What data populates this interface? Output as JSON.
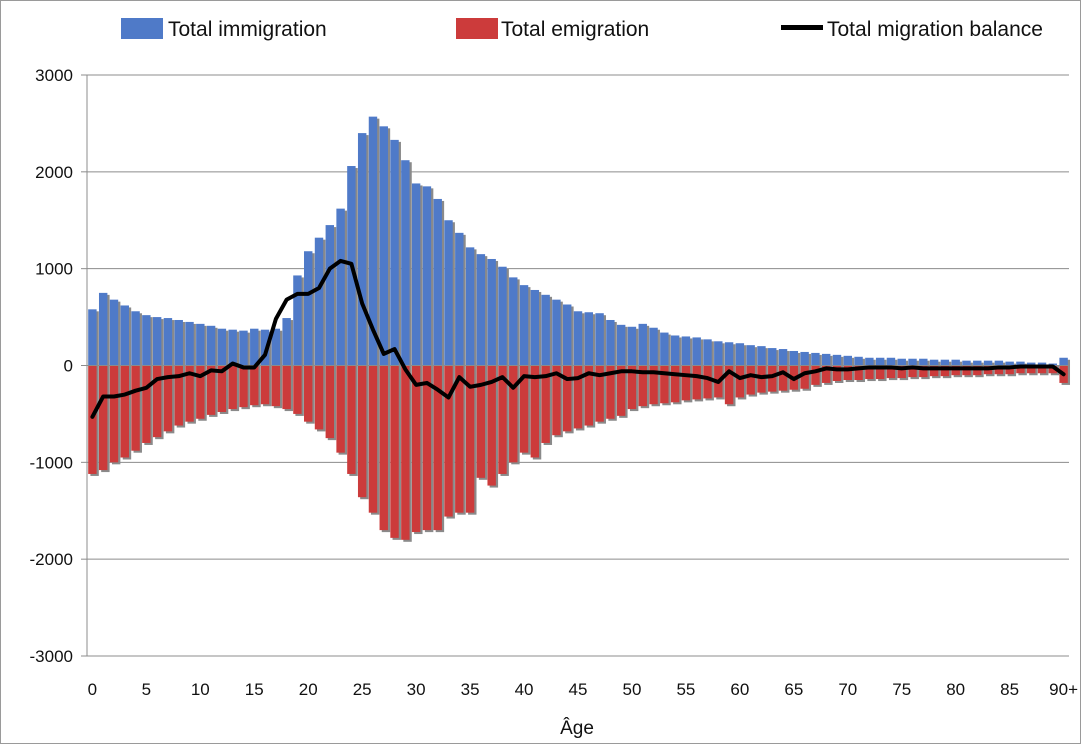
{
  "chart_data": {
    "type": "bar",
    "xlabel": "Âge",
    "ylabel": "",
    "ylim": [
      -3000,
      3000
    ],
    "yticks": [
      3000,
      2000,
      1000,
      0,
      -1000,
      -2000,
      -3000
    ],
    "xtick_labels": [
      "0",
      "5",
      "10",
      "15",
      "20",
      "25",
      "30",
      "35",
      "40",
      "45",
      "50",
      "55",
      "60",
      "65",
      "70",
      "75",
      "80",
      "85",
      "90+"
    ],
    "categories": [
      "0",
      "1",
      "2",
      "3",
      "4",
      "5",
      "6",
      "7",
      "8",
      "9",
      "10",
      "11",
      "12",
      "13",
      "14",
      "15",
      "16",
      "17",
      "18",
      "19",
      "20",
      "21",
      "22",
      "23",
      "24",
      "25",
      "26",
      "27",
      "28",
      "29",
      "30",
      "31",
      "32",
      "33",
      "34",
      "35",
      "36",
      "37",
      "38",
      "39",
      "40",
      "41",
      "42",
      "43",
      "44",
      "45",
      "46",
      "47",
      "48",
      "49",
      "50",
      "51",
      "52",
      "53",
      "54",
      "55",
      "56",
      "57",
      "58",
      "59",
      "60",
      "61",
      "62",
      "63",
      "64",
      "65",
      "66",
      "67",
      "68",
      "69",
      "70",
      "71",
      "72",
      "73",
      "74",
      "75",
      "76",
      "77",
      "78",
      "79",
      "80",
      "81",
      "82",
      "83",
      "84",
      "85",
      "86",
      "87",
      "88",
      "89",
      "90+"
    ],
    "grid": true,
    "legend_position": "top",
    "series": [
      {
        "name": "Total immigration",
        "type": "bar",
        "color": "#4f7ac8",
        "values": [
          580,
          750,
          680,
          620,
          560,
          520,
          500,
          490,
          470,
          450,
          430,
          410,
          380,
          370,
          360,
          380,
          370,
          380,
          490,
          930,
          1180,
          1320,
          1450,
          1620,
          2060,
          2400,
          2570,
          2470,
          2330,
          2120,
          1880,
          1850,
          1720,
          1500,
          1370,
          1220,
          1150,
          1100,
          1020,
          910,
          830,
          780,
          730,
          680,
          630,
          560,
          550,
          540,
          470,
          420,
          400,
          430,
          390,
          340,
          310,
          300,
          290,
          270,
          250,
          240,
          230,
          210,
          200,
          180,
          170,
          150,
          140,
          130,
          120,
          110,
          100,
          90,
          80,
          80,
          80,
          70,
          70,
          70,
          60,
          60,
          60,
          50,
          50,
          50,
          50,
          40,
          40,
          30,
          30,
          20,
          80
        ]
      },
      {
        "name": "Total emigration",
        "type": "bar",
        "color": "#cc3b3b",
        "values": [
          -1120,
          -1080,
          -1000,
          -950,
          -880,
          -800,
          -740,
          -680,
          -620,
          -580,
          -550,
          -510,
          -480,
          -450,
          -430,
          -410,
          -400,
          -420,
          -450,
          -500,
          -580,
          -660,
          -750,
          -900,
          -1120,
          -1360,
          -1520,
          -1700,
          -1780,
          -1800,
          -1720,
          -1700,
          -1700,
          -1560,
          -1520,
          -1520,
          -1160,
          -1240,
          -1120,
          -1000,
          -900,
          -950,
          -800,
          -720,
          -680,
          -650,
          -620,
          -580,
          -550,
          -520,
          -450,
          -420,
          -400,
          -390,
          -380,
          -360,
          -350,
          -340,
          -330,
          -400,
          -330,
          -300,
          -280,
          -270,
          -260,
          -250,
          -240,
          -200,
          -180,
          -160,
          -150,
          -150,
          -140,
          -140,
          -130,
          -130,
          -120,
          -120,
          -110,
          -110,
          -100,
          -100,
          -100,
          -90,
          -90,
          -90,
          -80,
          -80,
          -80,
          -80,
          -180
        ]
      },
      {
        "name": "Total migration balance",
        "type": "line",
        "color": "#000000",
        "values": [
          -530,
          -320,
          -320,
          -300,
          -260,
          -230,
          -140,
          -120,
          -110,
          -80,
          -110,
          -50,
          -60,
          20,
          -20,
          -20,
          110,
          480,
          680,
          740,
          740,
          800,
          1000,
          1080,
          1050,
          640,
          370,
          120,
          170,
          -40,
          -200,
          -180,
          -250,
          -330,
          -120,
          -220,
          -200,
          -170,
          -120,
          -230,
          -110,
          -120,
          -110,
          -80,
          -140,
          -130,
          -80,
          -100,
          -80,
          -60,
          -60,
          -70,
          -70,
          -80,
          -90,
          -100,
          -110,
          -130,
          -170,
          -60,
          -130,
          -100,
          -120,
          -110,
          -70,
          -140,
          -80,
          -60,
          -30,
          -40,
          -40,
          -30,
          -20,
          -20,
          -20,
          -30,
          -20,
          -30,
          -30,
          -30,
          -30,
          -30,
          -30,
          -30,
          -20,
          -20,
          -10,
          -10,
          -10,
          -10,
          -90
        ]
      }
    ]
  }
}
